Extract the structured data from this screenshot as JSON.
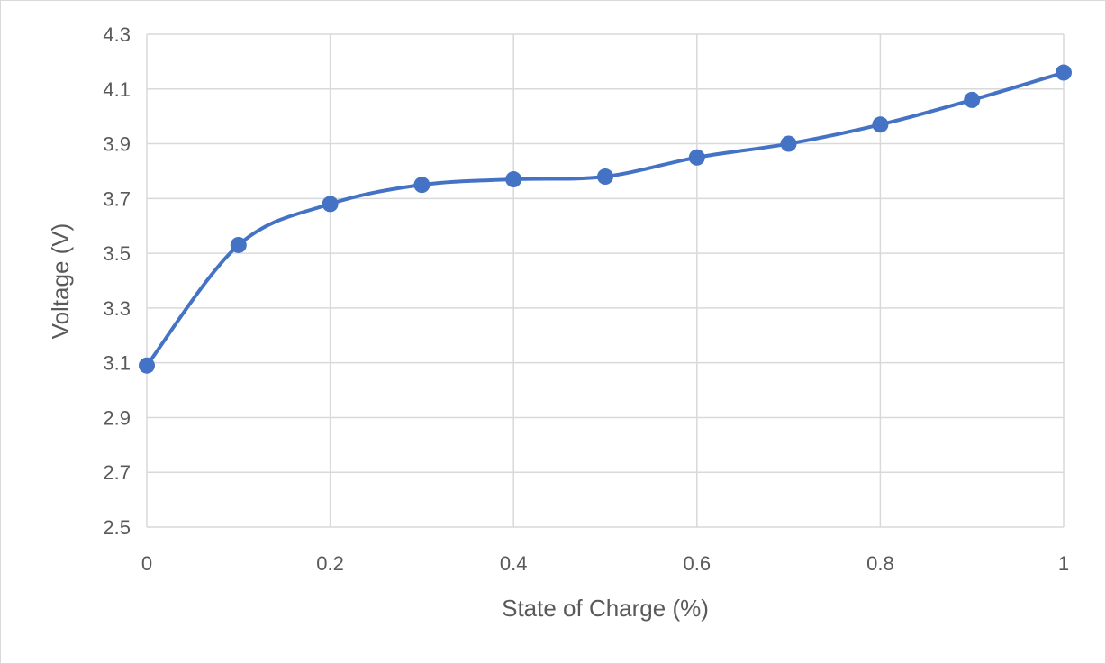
{
  "chart_data": {
    "type": "scatter",
    "title": "",
    "xlabel": "State of Charge (%)",
    "ylabel": "Voltage (V)",
    "xlim": [
      0,
      1
    ],
    "ylim": [
      2.5,
      4.3
    ],
    "x_ticks": [
      "0",
      "0.2",
      "0.4",
      "0.6",
      "0.8",
      "1"
    ],
    "x_tick_values": [
      0,
      0.2,
      0.4,
      0.6,
      0.8,
      1
    ],
    "y_ticks": [
      "2.5",
      "2.7",
      "2.9",
      "3.1",
      "3.3",
      "3.5",
      "3.7",
      "3.9",
      "4.1",
      "4.3"
    ],
    "y_tick_values": [
      2.5,
      2.7,
      2.9,
      3.1,
      3.3,
      3.5,
      3.7,
      3.9,
      4.1,
      4.3
    ],
    "x_minor_gridlines": [
      0.1,
      0.3,
      0.5,
      0.7,
      0.9
    ],
    "grid": true,
    "legend": "none",
    "smoothed_line": true,
    "colors": {
      "series": "#4472c4",
      "grid": "#d9d9d9",
      "text": "#595959"
    },
    "series": [
      {
        "x": [
          0,
          0.1,
          0.2,
          0.3,
          0.4,
          0.5,
          0.6,
          0.7,
          0.8,
          0.9,
          1.0
        ],
        "y": [
          3.09,
          3.53,
          3.68,
          3.75,
          3.77,
          3.78,
          3.85,
          3.9,
          3.97,
          4.06,
          4.16
        ]
      }
    ]
  }
}
